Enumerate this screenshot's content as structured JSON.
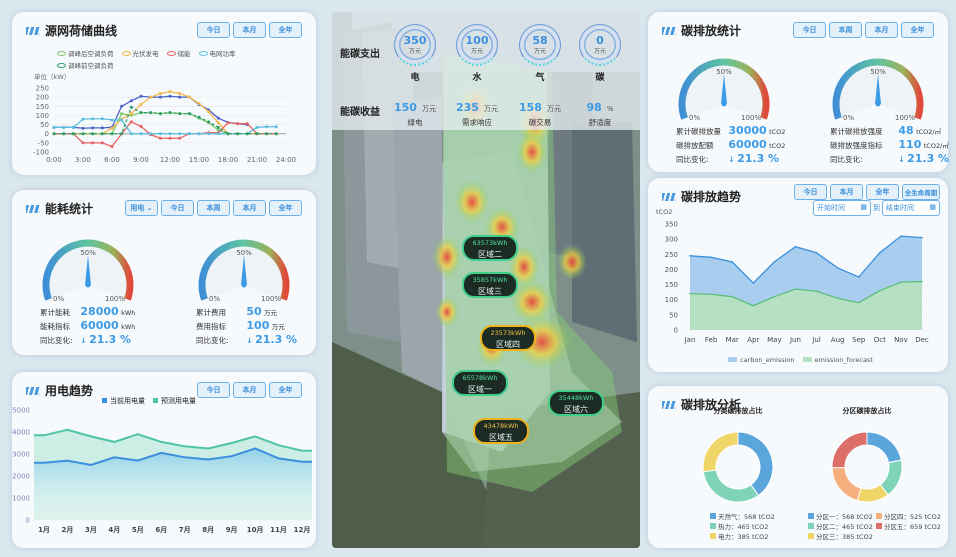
{
  "buttons": {
    "today": "今日",
    "week": "本周",
    "month": "本月",
    "year": "全年",
    "lifecycle": "全生命周期",
    "start_time": "开始时间",
    "to": "到",
    "end_time": "结束时间"
  },
  "grid_chart": {
    "title": "源网荷储曲线",
    "unit": "单位（kW）",
    "chart_data": {
      "type": "line",
      "x": [
        "0:00",
        "1:00",
        "2:00",
        "3:00",
        "4:00",
        "5:00",
        "6:00",
        "7:00",
        "8:00",
        "9:00",
        "10:00",
        "11:00",
        "12:00",
        "13:00",
        "14:00",
        "15:00",
        "16:00",
        "17:00",
        "18:00",
        "19:00",
        "20:00",
        "21:00",
        "22:00",
        "23:00"
      ],
      "xticks": [
        "0:00",
        "3:00",
        "6:00",
        "9:00",
        "12:00",
        "15:00",
        "18:00",
        "21:00",
        "24:00"
      ],
      "yticks": [
        250,
        200,
        150,
        100,
        50,
        0,
        -50,
        -100
      ],
      "ylim": [
        -100,
        250
      ],
      "legend": "top",
      "series": [
        {
          "name": "",
          "color": "#4a63c8",
          "values": [
            35,
            35,
            35,
            30,
            32,
            32,
            35,
            150,
            180,
            205,
            200,
            200,
            205,
            200,
            200,
            160,
            130,
            85,
            62,
            55,
            50,
            null,
            null,
            null
          ]
        },
        {
          "name": "调峰后空调负荷",
          "color": "#7cc96a",
          "values": [
            0,
            0,
            0,
            0,
            0,
            0,
            0,
            110,
            100,
            115,
            115,
            110,
            115,
            110,
            110,
            85,
            60,
            20,
            0,
            0,
            0,
            0,
            0,
            0
          ]
        },
        {
          "name": "光伏发电",
          "color": "#f4b94a",
          "values": [
            0,
            0,
            0,
            0,
            0,
            0,
            30,
            80,
            110,
            160,
            200,
            220,
            230,
            220,
            200,
            165,
            120,
            60,
            0,
            0,
            0,
            0,
            0,
            0
          ]
        },
        {
          "name": "储能",
          "color": "#e86060",
          "values": [
            0,
            0,
            0,
            -50,
            -50,
            -50,
            -70,
            0,
            65,
            40,
            -5,
            -25,
            -25,
            -25,
            0,
            0,
            5,
            5,
            60,
            55,
            55,
            0,
            0,
            0
          ]
        },
        {
          "name": "电网功率",
          "color": "#5bbde0",
          "values": [
            35,
            35,
            35,
            80,
            82,
            82,
            75,
            75,
            0,
            0,
            0,
            0,
            0,
            0,
            0,
            0,
            0,
            0,
            0,
            0,
            0,
            35,
            38,
            38
          ]
        },
        {
          "name": "调峰前空调负荷",
          "color": "#2e9e6a",
          "dashed": true,
          "values": [
            0,
            0,
            0,
            0,
            0,
            0,
            0,
            0,
            145,
            115,
            115,
            110,
            115,
            110,
            110,
            90,
            65,
            35,
            0,
            0,
            0,
            0,
            0,
            0
          ]
        }
      ]
    }
  },
  "energy_stats": {
    "title": "能耗统计",
    "select": "用电",
    "gauges": [
      {
        "value_pct": 50,
        "labels": [
          "0%",
          "50%",
          "100%"
        ],
        "rows": [
          {
            "label": "累计能耗",
            "value": "28000",
            "unit": "kWh"
          },
          {
            "label": "能耗指标",
            "value": "60000",
            "unit": "kWh"
          },
          {
            "label": "同比变化:",
            "value": "21.3 %",
            "arrow": "↓"
          }
        ]
      },
      {
        "value_pct": 50,
        "labels": [
          "0%",
          "50%",
          "100%"
        ],
        "rows": [
          {
            "label": "累计费用",
            "value": "50",
            "unit": "万元"
          },
          {
            "label": "费用指标",
            "value": "100",
            "unit": "万元"
          },
          {
            "label": "同比变化:",
            "value": "21.3 %",
            "arrow": "↓"
          }
        ]
      }
    ]
  },
  "power_trend": {
    "title": "用电趋势",
    "chart_data": {
      "type": "area",
      "categories": [
        "1月",
        "2月",
        "3月",
        "4月",
        "5月",
        "6月",
        "7月",
        "8月",
        "9月",
        "10月",
        "11月",
        "12月"
      ],
      "yticks": [
        5000,
        4000,
        3000,
        2000,
        1000,
        0
      ],
      "ylim": [
        0,
        5000
      ],
      "legend": "top",
      "series": [
        {
          "name": "当前用电量",
          "color": "#3a8fde",
          "values": [
            2600,
            2700,
            2500,
            2850,
            2700,
            3050,
            2850,
            2750,
            2900,
            3250,
            2800,
            2650
          ]
        },
        {
          "name": "预测用电量",
          "color": "#4fc4a4",
          "values": [
            3850,
            4100,
            3800,
            3550,
            3900,
            3550,
            3350,
            3250,
            3500,
            3800,
            3400,
            3150
          ]
        }
      ]
    }
  },
  "center": {
    "spend_label": "能碳支出",
    "income_label": "能碳收益",
    "spend": [
      {
        "value": "350",
        "unit": "万元",
        "name": "电"
      },
      {
        "value": "100",
        "unit": "万元",
        "name": "水"
      },
      {
        "value": "58",
        "unit": "万元",
        "name": "气"
      },
      {
        "value": "0",
        "unit": "万元",
        "name": "碳"
      }
    ],
    "income": [
      {
        "value": "150",
        "unit": "万元",
        "name": "绿电"
      },
      {
        "value": "235",
        "unit": "万元",
        "name": "需求响应"
      },
      {
        "value": "158",
        "unit": "万元",
        "name": "碳交易"
      },
      {
        "value": "98",
        "unit": "%",
        "name": "舒适度"
      }
    ],
    "zones": [
      {
        "kwh": "63573kWh",
        "name": "区域二",
        "status": "normal"
      },
      {
        "kwh": "35857kWh",
        "name": "区域三",
        "status": "normal"
      },
      {
        "kwh": "23573kWh",
        "name": "区域四",
        "status": "warning"
      },
      {
        "kwh": "65578kWh",
        "name": "区域一",
        "status": "normal"
      },
      {
        "kwh": "35448kWh",
        "name": "区域六",
        "status": "normal"
      },
      {
        "kwh": "43478kWh",
        "name": "区域五",
        "status": "warning"
      }
    ]
  },
  "carbon_stats": {
    "title": "碳排放统计",
    "gauges": [
      {
        "value_pct": 50,
        "labels": [
          "0%",
          "50%",
          "100%"
        ],
        "rows": [
          {
            "label": "累计碳排放量",
            "value": "30000",
            "unit": "tCO2"
          },
          {
            "label": "碳排放配额",
            "value": "60000",
            "unit": "tCO2"
          },
          {
            "label": "同比变化:",
            "value": "21.3 %",
            "arrow": "↓"
          }
        ]
      },
      {
        "value_pct": 50,
        "labels": [
          "0%",
          "50%",
          "100%"
        ],
        "rows": [
          {
            "label": "累计碳排放强度",
            "value": "48",
            "unit": "tCO2/㎡"
          },
          {
            "label": "碳排放强度指标",
            "value": "110",
            "unit": "tCO2/㎡"
          },
          {
            "label": "同比变化:",
            "value": "21.3 %",
            "arrow": "↓"
          }
        ]
      }
    ]
  },
  "carbon_trend": {
    "title": "碳排放趋势",
    "ylabel": "tCO2",
    "chart_data": {
      "type": "area",
      "categories": [
        "Jan",
        "Feb",
        "Mar",
        "Apr",
        "May",
        "Jun",
        "Jul",
        "Aug",
        "Sep",
        "Oct",
        "Nov",
        "Dec"
      ],
      "yticks": [
        350,
        300,
        250,
        200,
        150,
        100,
        50,
        0
      ],
      "ylim": [
        0,
        350
      ],
      "legend": "bottom",
      "series": [
        {
          "name": "carbon_emission",
          "color": "#3a8fde",
          "fill": "#a8cdef",
          "values": [
            245,
            240,
            225,
            155,
            225,
            275,
            255,
            205,
            175,
            255,
            310,
            305
          ]
        },
        {
          "name": "emission_forecast",
          "color": "#5cc07a",
          "fill": "#b5e0c4",
          "values": [
            120,
            118,
            110,
            80,
            110,
            135,
            128,
            105,
            90,
            130,
            158,
            160
          ]
        }
      ]
    }
  },
  "carbon_analysis": {
    "title": "碳排放分析",
    "chart_data": [
      {
        "type": "pie",
        "title": "分类碳排放占比",
        "slices": [
          {
            "name": "天然气",
            "value": 568,
            "unit": "tCO2",
            "color": "#5aa5dc"
          },
          {
            "name": "热力",
            "value": 465,
            "unit": "tCO2",
            "color": "#7fd3b8"
          },
          {
            "name": "电力",
            "value": 385,
            "unit": "tCO2",
            "color": "#f0d569"
          }
        ]
      },
      {
        "type": "pie",
        "title": "分区碳排放占比",
        "slices": [
          {
            "name": "分区一",
            "value": 568,
            "unit": "tCO2",
            "color": "#5aa5dc"
          },
          {
            "name": "分区二",
            "value": 465,
            "unit": "tCO2",
            "color": "#7fd3b8"
          },
          {
            "name": "分区三",
            "value": 385,
            "unit": "tCO2",
            "color": "#f0d569"
          },
          {
            "name": "分区四",
            "value": 525,
            "unit": "tCO2",
            "color": "#f7ae7e"
          },
          {
            "name": "分区五",
            "value": 659,
            "unit": "tCO2",
            "color": "#dc6f6a"
          }
        ]
      }
    ]
  }
}
